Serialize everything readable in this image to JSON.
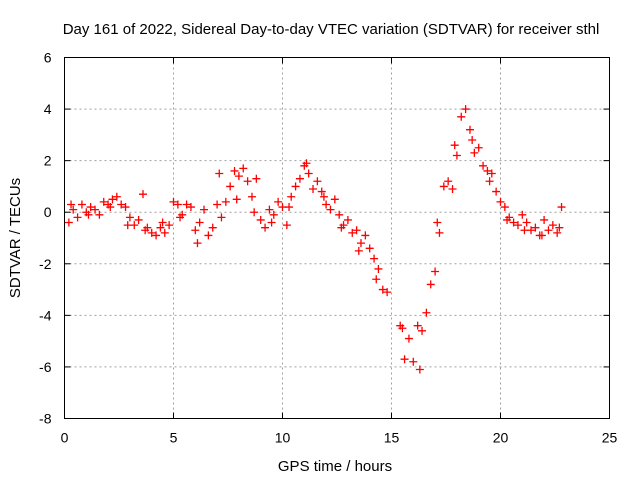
{
  "chart_data": {
    "type": "scatter",
    "title": "Day 161 of 2022, Sidereal Day-to-day VTEC variation (SDTVAR) for receiver sthl",
    "xlabel": "GPS time / hours",
    "ylabel": "SDTVAR / TECUs",
    "xlim": [
      0,
      25
    ],
    "ylim": [
      -8,
      6
    ],
    "xticks": [
      "0",
      "5",
      "10",
      "15",
      "20",
      "25"
    ],
    "yticks": [
      "-8",
      "-6",
      "-4",
      "-2",
      "0",
      "2",
      "4",
      "6"
    ],
    "grid": true,
    "marker": "+",
    "color": "#ff0000",
    "series": [
      {
        "name": "SDTVAR",
        "x": [
          0.2,
          0.4,
          0.6,
          0.8,
          1.0,
          1.2,
          1.4,
          1.6,
          1.8,
          2.0,
          2.2,
          2.4,
          2.6,
          2.8,
          3.0,
          3.2,
          3.4,
          3.6,
          3.8,
          4.0,
          4.2,
          4.4,
          4.6,
          4.8,
          5.0,
          5.2,
          5.4,
          5.6,
          5.8,
          6.0,
          6.2,
          6.4,
          6.6,
          6.8,
          7.0,
          7.2,
          7.4,
          7.6,
          7.8,
          8.0,
          8.2,
          8.4,
          8.6,
          8.8,
          9.0,
          9.2,
          9.4,
          9.6,
          9.8,
          10.0,
          10.2,
          10.4,
          10.6,
          10.8,
          11.0,
          11.2,
          11.4,
          11.6,
          11.8,
          12.0,
          12.2,
          12.4,
          12.6,
          12.8,
          13.0,
          13.2,
          13.4,
          13.6,
          13.8,
          14.0,
          14.2,
          14.4,
          14.6,
          14.8,
          15.4,
          15.6,
          15.8,
          16.0,
          16.2,
          16.4,
          16.6,
          16.8,
          17.0,
          17.2,
          17.4,
          17.6,
          17.8,
          18.0,
          18.2,
          18.4,
          18.6,
          18.8,
          19.0,
          19.2,
          19.4,
          19.6,
          19.8,
          20.0,
          20.2,
          20.4,
          20.6,
          20.8,
          21.0,
          21.2,
          21.4,
          21.6,
          21.8,
          22.0,
          22.2,
          22.4,
          22.6,
          22.8,
          0.3,
          1.1,
          2.1,
          2.9,
          3.7,
          4.5,
          5.3,
          6.1,
          7.1,
          7.9,
          8.7,
          9.5,
          10.3,
          11.1,
          11.9,
          12.7,
          13.5,
          14.3,
          15.5,
          16.3,
          17.1,
          17.9,
          18.7,
          19.5,
          20.3,
          21.1,
          21.9,
          22.7
        ],
        "y": [
          -0.4,
          0.1,
          -0.2,
          0.3,
          0.0,
          0.2,
          0.1,
          -0.1,
          0.4,
          0.3,
          0.5,
          0.6,
          0.3,
          0.2,
          -0.2,
          -0.5,
          -0.3,
          0.7,
          -0.6,
          -0.8,
          -0.9,
          -0.6,
          -0.8,
          -0.5,
          0.4,
          0.3,
          -0.1,
          0.3,
          0.2,
          -0.7,
          -0.4,
          0.1,
          -0.9,
          -0.6,
          0.3,
          -0.2,
          0.4,
          1.0,
          1.6,
          1.4,
          1.7,
          1.2,
          0.6,
          1.3,
          -0.3,
          -0.6,
          0.1,
          -0.1,
          0.4,
          0.2,
          -0.5,
          0.6,
          1.0,
          1.3,
          1.8,
          1.5,
          0.9,
          1.2,
          0.8,
          0.3,
          0.1,
          0.5,
          -0.1,
          -0.5,
          -0.3,
          -0.8,
          -0.7,
          -1.2,
          -0.9,
          -1.4,
          -1.8,
          -2.2,
          -3.0,
          -3.1,
          -4.4,
          -5.7,
          -4.9,
          -5.8,
          -4.4,
          -4.6,
          -3.9,
          -2.8,
          -2.3,
          -0.8,
          1.0,
          1.2,
          0.9,
          2.2,
          3.7,
          4.0,
          3.2,
          2.3,
          2.5,
          1.8,
          1.6,
          1.5,
          0.8,
          0.4,
          0.2,
          -0.2,
          -0.4,
          -0.5,
          -0.1,
          -0.4,
          -0.7,
          -0.6,
          -0.9,
          -0.3,
          -0.7,
          -0.5,
          -0.8,
          0.2,
          0.3,
          -0.1,
          0.2,
          -0.5,
          -0.7,
          -0.4,
          -0.2,
          -1.2,
          1.5,
          0.5,
          0.0,
          -0.4,
          0.2,
          1.9,
          0.6,
          -0.6,
          -1.5,
          -2.6,
          -4.5,
          -6.1,
          -0.4,
          2.6,
          2.8,
          1.2,
          -0.3,
          -0.7,
          -0.9,
          -0.6
        ]
      }
    ]
  }
}
